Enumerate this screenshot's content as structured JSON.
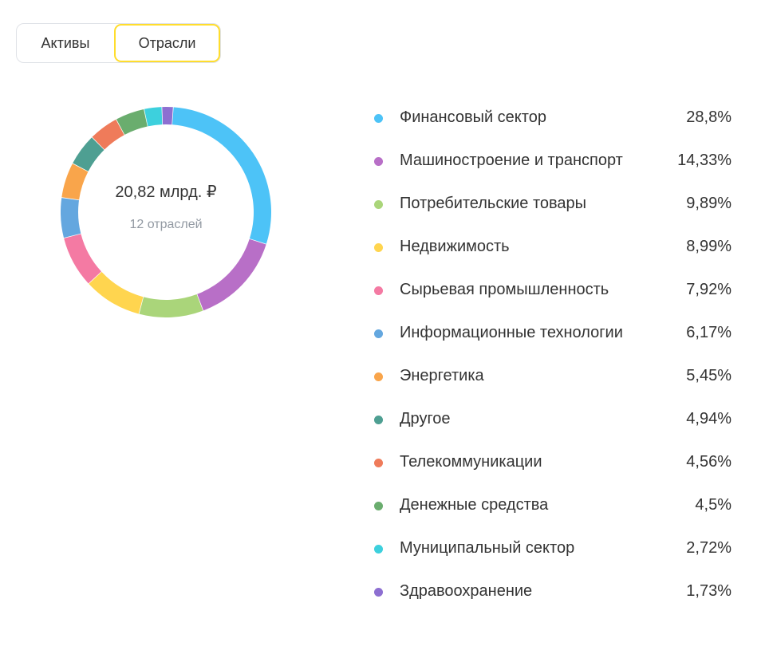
{
  "tabs": [
    {
      "label": "Активы",
      "selected": false
    },
    {
      "label": "Отрасли",
      "selected": true
    }
  ],
  "summary": {
    "total": "20,82 млрд. ₽",
    "count_label": "12 отраслей"
  },
  "chart_data": {
    "type": "pie",
    "donut": true,
    "categories": [
      "Финансовый сектор",
      "Машиностроение и транспорт",
      "Потребительские товары",
      "Недвижимость",
      "Сырьевая промышленность",
      "Информационные технологии",
      "Энергетика",
      "Другое",
      "Телекоммуникации",
      "Денежные средства",
      "Муниципальный сектор",
      "Здравоохранение"
    ],
    "values": [
      28.8,
      14.33,
      9.89,
      8.99,
      7.92,
      6.17,
      5.45,
      4.94,
      4.56,
      4.5,
      2.72,
      1.73
    ],
    "value_labels": [
      "28,8%",
      "14,33%",
      "9,89%",
      "8,99%",
      "7,92%",
      "6,17%",
      "5,45%",
      "4,94%",
      "4,56%",
      "4,5%",
      "2,72%",
      "1,73%"
    ],
    "colors": [
      "#4dc3f7",
      "#b86fc7",
      "#aad57a",
      "#ffd54f",
      "#f47aa3",
      "#64a7df",
      "#f9a54b",
      "#4e9f92",
      "#ef7b5a",
      "#6aad6e",
      "#3dd0dd",
      "#8d6fd1"
    ],
    "legend_position": "right"
  }
}
